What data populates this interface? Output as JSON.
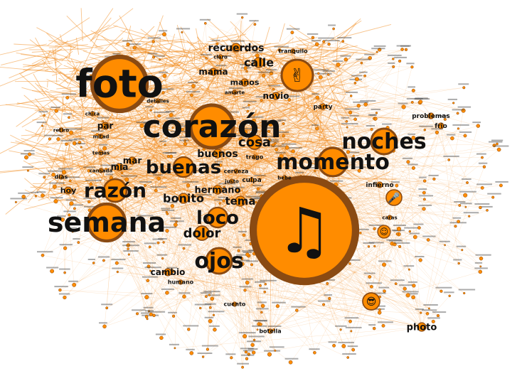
{
  "colors": {
    "edge": "#f28a1a",
    "node_fill": "#ff8c00",
    "node_ring": "#8a4a12",
    "label": "#111111"
  },
  "words": [
    {
      "text": "foto",
      "weight": 10
    },
    {
      "text": "corazón",
      "weight": 8
    },
    {
      "text": "semana",
      "weight": 7
    },
    {
      "text": "momento",
      "weight": 6
    },
    {
      "text": "noches",
      "weight": 6
    },
    {
      "text": "razón",
      "weight": 5
    },
    {
      "text": "buenas",
      "weight": 5
    },
    {
      "text": "ojos",
      "weight": 5
    },
    {
      "text": "loco",
      "weight": 4
    },
    {
      "text": "dolor",
      "weight": 3
    },
    {
      "text": "cosa",
      "weight": 3
    },
    {
      "text": "buenos",
      "weight": 2
    },
    {
      "text": "bonito",
      "weight": 2
    },
    {
      "text": "hermano",
      "weight": 2
    },
    {
      "text": "tema",
      "weight": 2
    },
    {
      "text": "calle",
      "weight": 3
    },
    {
      "text": "recuerdos",
      "weight": 2
    },
    {
      "text": "mama",
      "weight": 2
    },
    {
      "text": "manos",
      "weight": 2
    },
    {
      "text": "novio",
      "weight": 2
    },
    {
      "text": "photo",
      "weight": 2
    },
    {
      "text": "cambio",
      "weight": 2
    },
    {
      "text": "mar",
      "weight": 2
    },
    {
      "text": "mia",
      "weight": 2
    },
    {
      "text": "par",
      "weight": 2
    },
    {
      "text": "hoy",
      "weight": 2
    },
    {
      "text": "problemas",
      "weight": 1
    },
    {
      "text": "frio",
      "weight": 1
    },
    {
      "text": "party",
      "weight": 1
    },
    {
      "text": "infierno",
      "weight": 1
    },
    {
      "text": "cerveza",
      "weight": 1
    },
    {
      "text": "culpa",
      "weight": 1
    },
    {
      "text": "trago",
      "weight": 1
    },
    {
      "text": "humano",
      "weight": 1
    },
    {
      "text": "cuento",
      "weight": 1
    },
    {
      "text": "botella",
      "weight": 1
    },
    {
      "text": "tranquilo",
      "weight": 1
    },
    {
      "text": "detalles",
      "weight": 1
    },
    {
      "text": "dias",
      "weight": 1
    },
    {
      "text": "cansada",
      "weight": 1
    },
    {
      "text": "retiro",
      "weight": 1
    },
    {
      "text": "claro",
      "weight": 1
    },
    {
      "text": "caras",
      "weight": 1
    },
    {
      "text": "bebe",
      "weight": 1
    },
    {
      "text": "justo",
      "weight": 1
    },
    {
      "text": "amarte",
      "weight": 1
    },
    {
      "text": "temas",
      "weight": 1
    },
    {
      "text": "mitad",
      "weight": 1
    },
    {
      "text": "chica",
      "weight": 1
    }
  ],
  "icons": [
    {
      "name": "music-notes-icon",
      "glyph": "♫"
    },
    {
      "name": "victory-hand-icon",
      "glyph": "✌"
    },
    {
      "name": "smiley-icon",
      "glyph": "☺"
    },
    {
      "name": "sunglasses-face-icon",
      "glyph": "😎"
    },
    {
      "name": "microphone-icon",
      "glyph": "🎤"
    }
  ]
}
